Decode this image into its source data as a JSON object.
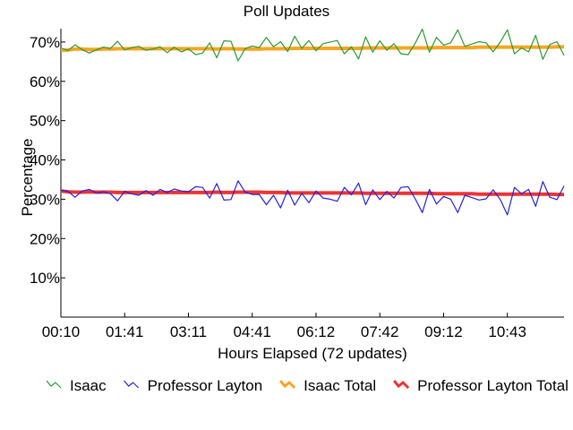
{
  "chart_data": {
    "type": "line",
    "title": "Poll Updates",
    "xlabel": "Hours Elapsed (72 updates)",
    "ylabel": "Percentage",
    "ylim": [
      0,
      75
    ],
    "xlim": [
      0,
      71
    ],
    "y_ticks": [
      {
        "value": 10,
        "label": "10%"
      },
      {
        "value": 20,
        "label": "20%"
      },
      {
        "value": 30,
        "label": "30%"
      },
      {
        "value": 40,
        "label": "40%"
      },
      {
        "value": 50,
        "label": "50%"
      },
      {
        "value": 60,
        "label": "60%"
      },
      {
        "value": 70,
        "label": "70%"
      }
    ],
    "x_ticks": [
      {
        "index": 0,
        "label": "00:10"
      },
      {
        "index": 9,
        "label": "01:41"
      },
      {
        "index": 18,
        "label": "03:11"
      },
      {
        "index": 27,
        "label": "04:41"
      },
      {
        "index": 36,
        "label": "06:12"
      },
      {
        "index": 45,
        "label": "07:42"
      },
      {
        "index": 54,
        "label": "09:12"
      },
      {
        "index": 63,
        "label": "10:43"
      }
    ],
    "grid": false,
    "legend_position": "bottom",
    "series": [
      {
        "name": "Isaac",
        "color": "#2e9a2e",
        "style": "thin",
        "values": [
          68.5,
          67.8,
          69.3,
          68.1,
          67.2,
          68.0,
          68.7,
          68.4,
          70.2,
          68.0,
          68.6,
          68.9,
          67.9,
          68.2,
          68.8,
          67.3,
          68.7,
          67.5,
          68.3,
          66.8,
          67.2,
          69.8,
          66.0,
          70.3,
          70.2,
          65.2,
          68.3,
          69.0,
          68.6,
          71.2,
          68.8,
          70.1,
          67.6,
          71.5,
          68.4,
          70.4,
          67.8,
          69.6,
          70.0,
          70.4,
          67.0,
          68.8,
          65.7,
          71.3,
          67.4,
          70.3,
          67.9,
          69.6,
          67.0,
          66.8,
          69.7,
          73.3,
          67.4,
          71.2,
          69.2,
          69.8,
          73.1,
          68.9,
          69.5,
          70.1,
          69.8,
          67.5,
          70.0,
          73.1,
          67.0,
          68.5,
          67.5,
          71.7,
          65.6,
          69.4,
          70.1,
          66.6
        ]
      },
      {
        "name": "Professor Layton",
        "color": "#2222dd",
        "style": "thin",
        "values": [
          32.3,
          32.0,
          30.5,
          32.1,
          32.5,
          31.6,
          31.9,
          31.4,
          29.6,
          32.0,
          31.4,
          31.0,
          32.2,
          31.0,
          32.5,
          31.7,
          32.6,
          32.1,
          31.9,
          33.2,
          33.0,
          30.3,
          34.0,
          29.8,
          29.9,
          34.7,
          31.8,
          31.2,
          31.2,
          28.6,
          31.0,
          27.8,
          32.3,
          28.5,
          31.5,
          29.1,
          32.1,
          30.3,
          30.0,
          29.5,
          33.0,
          31.1,
          34.1,
          28.6,
          32.4,
          29.9,
          32.0,
          30.3,
          33.0,
          33.2,
          30.1,
          26.6,
          32.5,
          28.8,
          30.7,
          30.0,
          26.6,
          31.0,
          30.4,
          29.8,
          30.1,
          32.4,
          29.9,
          26.0,
          33.0,
          31.4,
          32.5,
          28.2,
          34.5,
          30.5,
          29.9,
          33.4
        ]
      },
      {
        "name": "Isaac Total",
        "color": "#f5a623",
        "style": "thick",
        "values": [
          67.9,
          68.0,
          68.2,
          68.2,
          68.1,
          68.1,
          68.2,
          68.2,
          68.3,
          68.3,
          68.3,
          68.3,
          68.3,
          68.3,
          68.3,
          68.3,
          68.3,
          68.3,
          68.3,
          68.3,
          68.3,
          68.3,
          68.2,
          68.3,
          68.3,
          68.2,
          68.2,
          68.2,
          68.2,
          68.3,
          68.3,
          68.3,
          68.3,
          68.4,
          68.4,
          68.4,
          68.4,
          68.4,
          68.4,
          68.4,
          68.4,
          68.4,
          68.4,
          68.5,
          68.5,
          68.5,
          68.5,
          68.5,
          68.5,
          68.5,
          68.5,
          68.5,
          68.5,
          68.6,
          68.6,
          68.6,
          68.6,
          68.6,
          68.6,
          68.7,
          68.7,
          68.7,
          68.7,
          68.7,
          68.7,
          68.7,
          68.7,
          68.7,
          68.7,
          68.7,
          68.8,
          68.8
        ]
      },
      {
        "name": "Professor Layton Total",
        "color": "#ee3333",
        "style": "thick",
        "values": [
          32.1,
          31.9,
          31.8,
          31.8,
          31.9,
          31.8,
          31.8,
          31.8,
          31.7,
          31.7,
          31.7,
          31.7,
          31.7,
          31.7,
          31.7,
          31.7,
          31.7,
          31.7,
          31.7,
          31.7,
          31.7,
          31.7,
          31.8,
          31.7,
          31.7,
          31.8,
          31.8,
          31.8,
          31.8,
          31.7,
          31.7,
          31.7,
          31.6,
          31.6,
          31.6,
          31.6,
          31.6,
          31.6,
          31.6,
          31.6,
          31.6,
          31.6,
          31.6,
          31.5,
          31.5,
          31.5,
          31.5,
          31.5,
          31.5,
          31.5,
          31.5,
          31.5,
          31.5,
          31.4,
          31.4,
          31.4,
          31.4,
          31.4,
          31.4,
          31.3,
          31.3,
          31.3,
          31.3,
          31.3,
          31.3,
          31.3,
          31.3,
          31.3,
          31.3,
          31.3,
          31.2,
          31.2
        ]
      }
    ]
  }
}
